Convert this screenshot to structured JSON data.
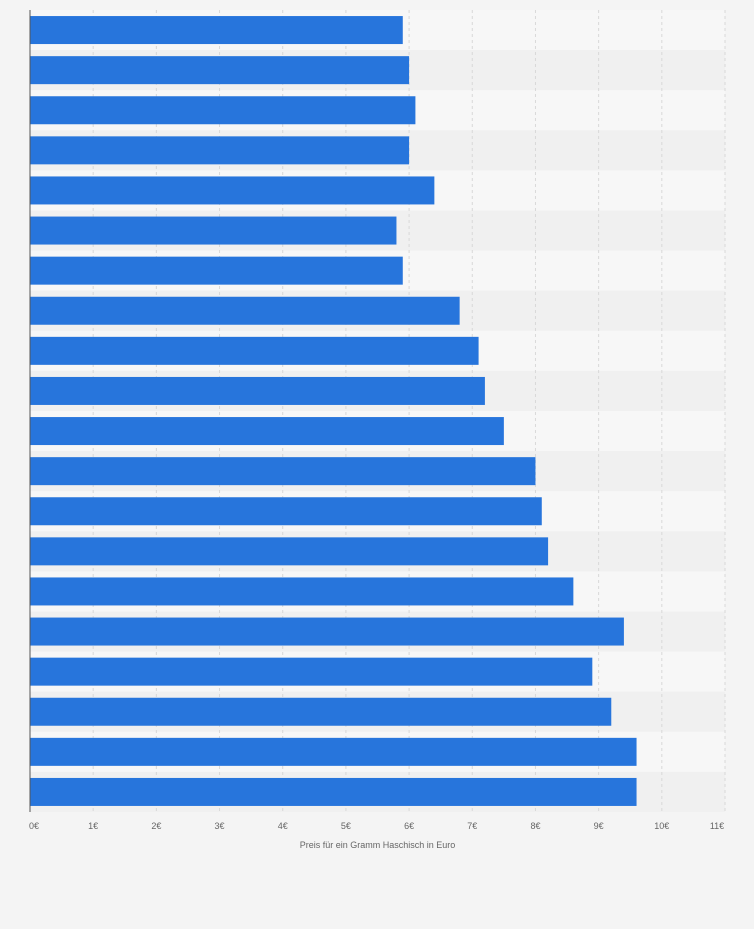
{
  "chart_data": {
    "type": "bar",
    "orientation": "horizontal",
    "xlabel": "Preis für ein Gramm Haschisch in Euro",
    "ylabel": "",
    "xlim": [
      0,
      11
    ],
    "x_ticks": [
      {
        "value": 0,
        "label": "0€"
      },
      {
        "value": 1,
        "label": "1€"
      },
      {
        "value": 2,
        "label": "2€"
      },
      {
        "value": 3,
        "label": "3€"
      },
      {
        "value": 4,
        "label": "4€"
      },
      {
        "value": 5,
        "label": "5€"
      },
      {
        "value": 6,
        "label": "6€"
      },
      {
        "value": 7,
        "label": "7€"
      },
      {
        "value": 8,
        "label": "8€"
      },
      {
        "value": 9,
        "label": "9€"
      },
      {
        "value": 10,
        "label": "10€"
      },
      {
        "value": 11,
        "label": "11€"
      }
    ],
    "categories": [
      "",
      "",
      "",
      "",
      "",
      "",
      "",
      "",
      "",
      "",
      "",
      "",
      "",
      "",
      "",
      "",
      "",
      "",
      "",
      ""
    ],
    "values": [
      5.9,
      6.0,
      6.1,
      6.0,
      6.4,
      5.8,
      5.9,
      6.8,
      7.1,
      7.2,
      7.5,
      8.0,
      8.1,
      8.2,
      8.6,
      9.4,
      8.9,
      9.2,
      9.6,
      9.6
    ],
    "grid": true,
    "legend": "none",
    "colors": {
      "bar": "#2775dc",
      "band_light": "#f7f7f7",
      "band_dark": "#f0f0f0",
      "grid": "#d8d8d8",
      "axis": "#555555",
      "background": "#f4f4f4"
    }
  }
}
